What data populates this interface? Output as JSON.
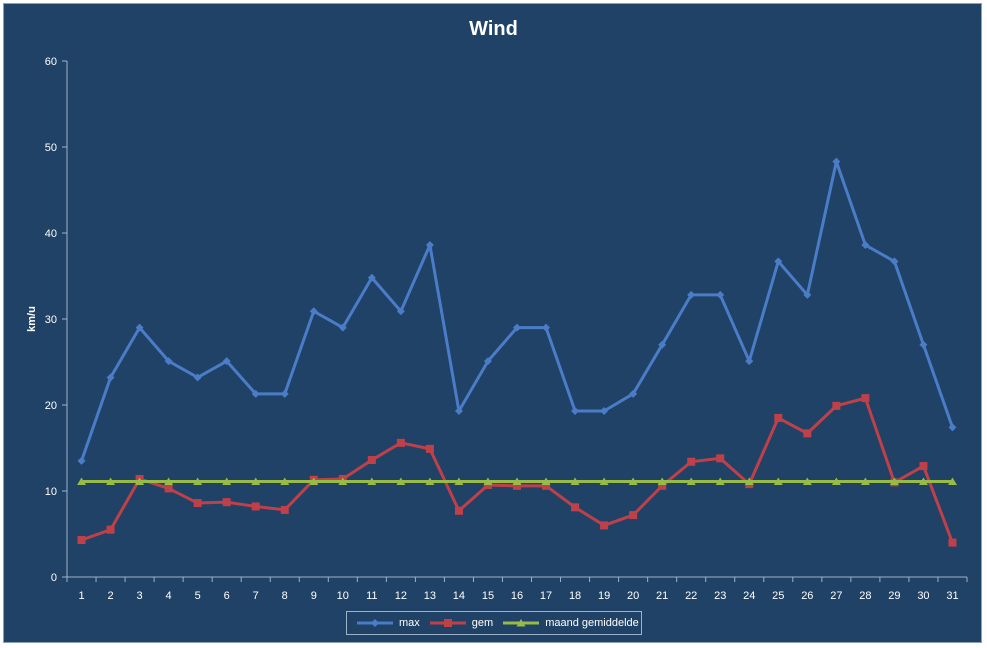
{
  "chart_data": {
    "type": "line",
    "title": "Wind",
    "xlabel": "",
    "ylabel": "km/u",
    "categories": [
      "1",
      "2",
      "3",
      "4",
      "5",
      "6",
      "7",
      "8",
      "9",
      "10",
      "11",
      "12",
      "13",
      "14",
      "15",
      "16",
      "17",
      "18",
      "19",
      "20",
      "21",
      "22",
      "23",
      "24",
      "25",
      "26",
      "27",
      "28",
      "29",
      "30",
      "31"
    ],
    "ylim": [
      0,
      60
    ],
    "yticks": [
      0,
      10,
      20,
      30,
      40,
      50,
      60
    ],
    "grid": false,
    "legend_position": "bottom",
    "series": [
      {
        "name": "max",
        "color": "#4a7cc7",
        "marker": "diamond",
        "values": [
          13.5,
          23.2,
          29.0,
          25.1,
          23.2,
          25.1,
          21.3,
          21.3,
          30.9,
          29.0,
          34.8,
          30.9,
          38.6,
          19.3,
          25.1,
          29.0,
          29.0,
          19.3,
          19.3,
          21.3,
          27.0,
          32.8,
          32.8,
          25.1,
          36.7,
          32.8,
          48.3,
          38.6,
          36.7,
          27.0,
          17.4
        ]
      },
      {
        "name": "gem",
        "color": "#c0404a",
        "marker": "square",
        "values": [
          4.3,
          5.5,
          11.4,
          10.3,
          8.6,
          8.7,
          8.2,
          7.8,
          11.3,
          11.4,
          13.6,
          15.6,
          14.9,
          7.7,
          10.7,
          10.6,
          10.6,
          8.1,
          6.0,
          7.2,
          10.6,
          13.4,
          13.8,
          10.8,
          18.5,
          16.7,
          19.9,
          20.8,
          11.0,
          12.9,
          4.0
        ]
      },
      {
        "name": "maand gemiddelde",
        "color": "#98bb48",
        "marker": "triangle",
        "values": [
          11.1,
          11.1,
          11.1,
          11.1,
          11.1,
          11.1,
          11.1,
          11.1,
          11.1,
          11.1,
          11.1,
          11.1,
          11.1,
          11.1,
          11.1,
          11.1,
          11.1,
          11.1,
          11.1,
          11.1,
          11.1,
          11.1,
          11.1,
          11.1,
          11.1,
          11.1,
          11.1,
          11.1,
          11.1,
          11.1,
          11.1
        ]
      }
    ]
  }
}
